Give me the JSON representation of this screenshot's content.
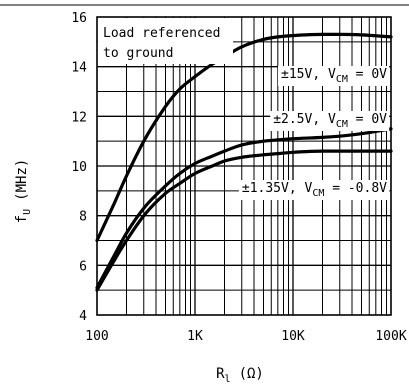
{
  "chart_data": {
    "type": "line",
    "xscale": "log",
    "xlim": [
      100,
      100000
    ],
    "ylim": [
      4,
      16
    ],
    "grid": true,
    "x_ticks": [
      {
        "value": 100,
        "label": "100"
      },
      {
        "value": 1000,
        "label": "1K"
      },
      {
        "value": 10000,
        "label": "10K"
      },
      {
        "value": 100000,
        "label": "100K"
      }
    ],
    "y_ticks": [
      {
        "value": 4,
        "label": "4"
      },
      {
        "value": 6,
        "label": "6"
      },
      {
        "value": 8,
        "label": "8"
      },
      {
        "value": 10,
        "label": "10"
      },
      {
        "value": 12,
        "label": "12"
      },
      {
        "value": 14,
        "label": "14"
      },
      {
        "value": 16,
        "label": "16"
      }
    ],
    "xlabel": {
      "main": "R",
      "sub": "l",
      "unit": "(Ω)"
    },
    "ylabel": {
      "main": "f",
      "sub": "U",
      "unit": "(MHz)"
    },
    "note": [
      "Load referenced",
      "to ground"
    ],
    "series": [
      {
        "label": {
          "pre": "±15V, V",
          "sub": "CM",
          "post": " = 0V"
        },
        "x": [
          100,
          150,
          200,
          300,
          500,
          700,
          1000,
          1500,
          2000,
          3000,
          5000,
          7000,
          10000,
          20000,
          30000,
          50000,
          100000
        ],
        "y": [
          7.0,
          8.5,
          9.6,
          11.0,
          12.4,
          13.1,
          13.6,
          14.1,
          14.4,
          14.8,
          15.1,
          15.2,
          15.25,
          15.3,
          15.3,
          15.28,
          15.2
        ]
      },
      {
        "label": {
          "pre": "±2.5V, V",
          "sub": "CM",
          "post": " = 0V"
        },
        "x": [
          100,
          150,
          200,
          300,
          500,
          700,
          1000,
          1500,
          2000,
          3000,
          5000,
          7000,
          10000,
          20000,
          30000,
          50000,
          100000
        ],
        "y": [
          5.1,
          6.4,
          7.3,
          8.3,
          9.2,
          9.7,
          10.1,
          10.4,
          10.6,
          10.85,
          11.0,
          11.05,
          11.1,
          11.15,
          11.2,
          11.3,
          11.5
        ]
      },
      {
        "label": {
          "pre": "±1.35V, V",
          "sub": "CM",
          "post": " = -0.8V"
        },
        "x": [
          100,
          150,
          200,
          300,
          500,
          700,
          1000,
          1500,
          2000,
          3000,
          5000,
          7000,
          10000,
          20000,
          30000,
          50000,
          100000
        ],
        "y": [
          5.0,
          6.2,
          7.0,
          8.0,
          8.9,
          9.3,
          9.7,
          10.0,
          10.2,
          10.35,
          10.45,
          10.5,
          10.55,
          10.6,
          10.6,
          10.6,
          10.6
        ]
      }
    ]
  }
}
